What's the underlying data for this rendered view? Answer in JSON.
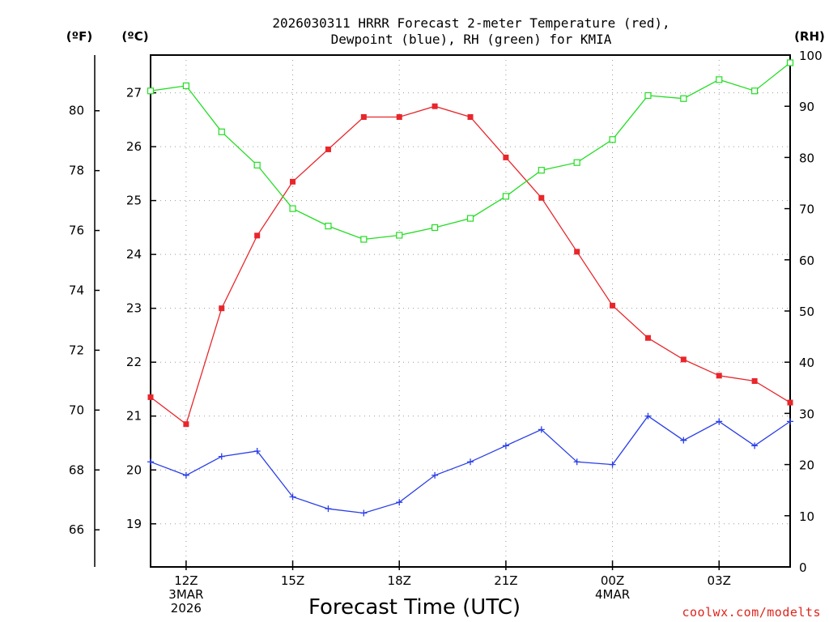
{
  "chart_data": {
    "type": "line",
    "title_line1": "2026030311 HRRR Forecast 2-meter Temperature (red),",
    "title_line2": "Dewpoint (blue), RH (green) for KMIA",
    "xlabel": "Forecast Time (UTC)",
    "credit": "coolwx.com/modelts",
    "units": {
      "fahrenheit": "(ºF)",
      "celsius": "(ºC)",
      "rh": "(RH)"
    },
    "x": [
      11,
      12,
      13,
      14,
      15,
      16,
      17,
      18,
      19,
      20,
      21,
      22,
      23,
      24,
      25,
      26,
      27,
      28,
      29
    ],
    "xlim": [
      11,
      29
    ],
    "x_ticks": [
      {
        "x": 12,
        "lines": [
          "12Z",
          "3MAR",
          "2026"
        ]
      },
      {
        "x": 15,
        "lines": [
          "15Z"
        ]
      },
      {
        "x": 18,
        "lines": [
          "18Z"
        ]
      },
      {
        "x": 21,
        "lines": [
          "21Z"
        ]
      },
      {
        "x": 24,
        "lines": [
          "00Z",
          "4MAR"
        ]
      },
      {
        "x": 27,
        "lines": [
          "03Z"
        ]
      }
    ],
    "celsius_axis": {
      "ylim": [
        18.2,
        27.7
      ],
      "ticks": [
        "19",
        "20",
        "21",
        "22",
        "23",
        "24",
        "25",
        "26",
        "27"
      ]
    },
    "fahrenheit_axis": {
      "ticks": [
        "66",
        "68",
        "70",
        "72",
        "74",
        "76",
        "78",
        "80"
      ]
    },
    "rh_axis": {
      "ylim": [
        0,
        100
      ],
      "ticks": [
        "0",
        "10",
        "20",
        "30",
        "40",
        "50",
        "60",
        "70",
        "80",
        "90",
        "100"
      ]
    },
    "series": [
      {
        "name": "Temperature",
        "color": "#e8262b",
        "marker": "filled-square",
        "axis": "celsius",
        "values": [
          21.35,
          20.85,
          23.0,
          24.35,
          25.35,
          25.95,
          26.55,
          26.55,
          26.75,
          26.55,
          25.8,
          25.05,
          24.05,
          23.05,
          22.45,
          22.05,
          21.75,
          21.65,
          21.25
        ]
      },
      {
        "name": "Dewpoint",
        "color": "#2a3ee8",
        "marker": "plus",
        "axis": "celsius",
        "values": [
          20.15,
          19.9,
          20.25,
          20.35,
          19.5,
          19.28,
          19.2,
          19.4,
          19.9,
          20.15,
          20.45,
          20.75,
          20.15,
          20.1,
          21.0,
          20.55,
          20.9,
          20.45,
          20.9
        ]
      },
      {
        "name": "RH",
        "color": "#22dd22",
        "marker": "open-square",
        "axis": "rh",
        "values": [
          93.0,
          94.0,
          85.0,
          78.5,
          70.0,
          66.6,
          64.0,
          64.8,
          66.3,
          68.1,
          72.4,
          77.5,
          79.0,
          83.5,
          92.1,
          91.5,
          95.2,
          93.0,
          98.5
        ]
      }
    ]
  }
}
